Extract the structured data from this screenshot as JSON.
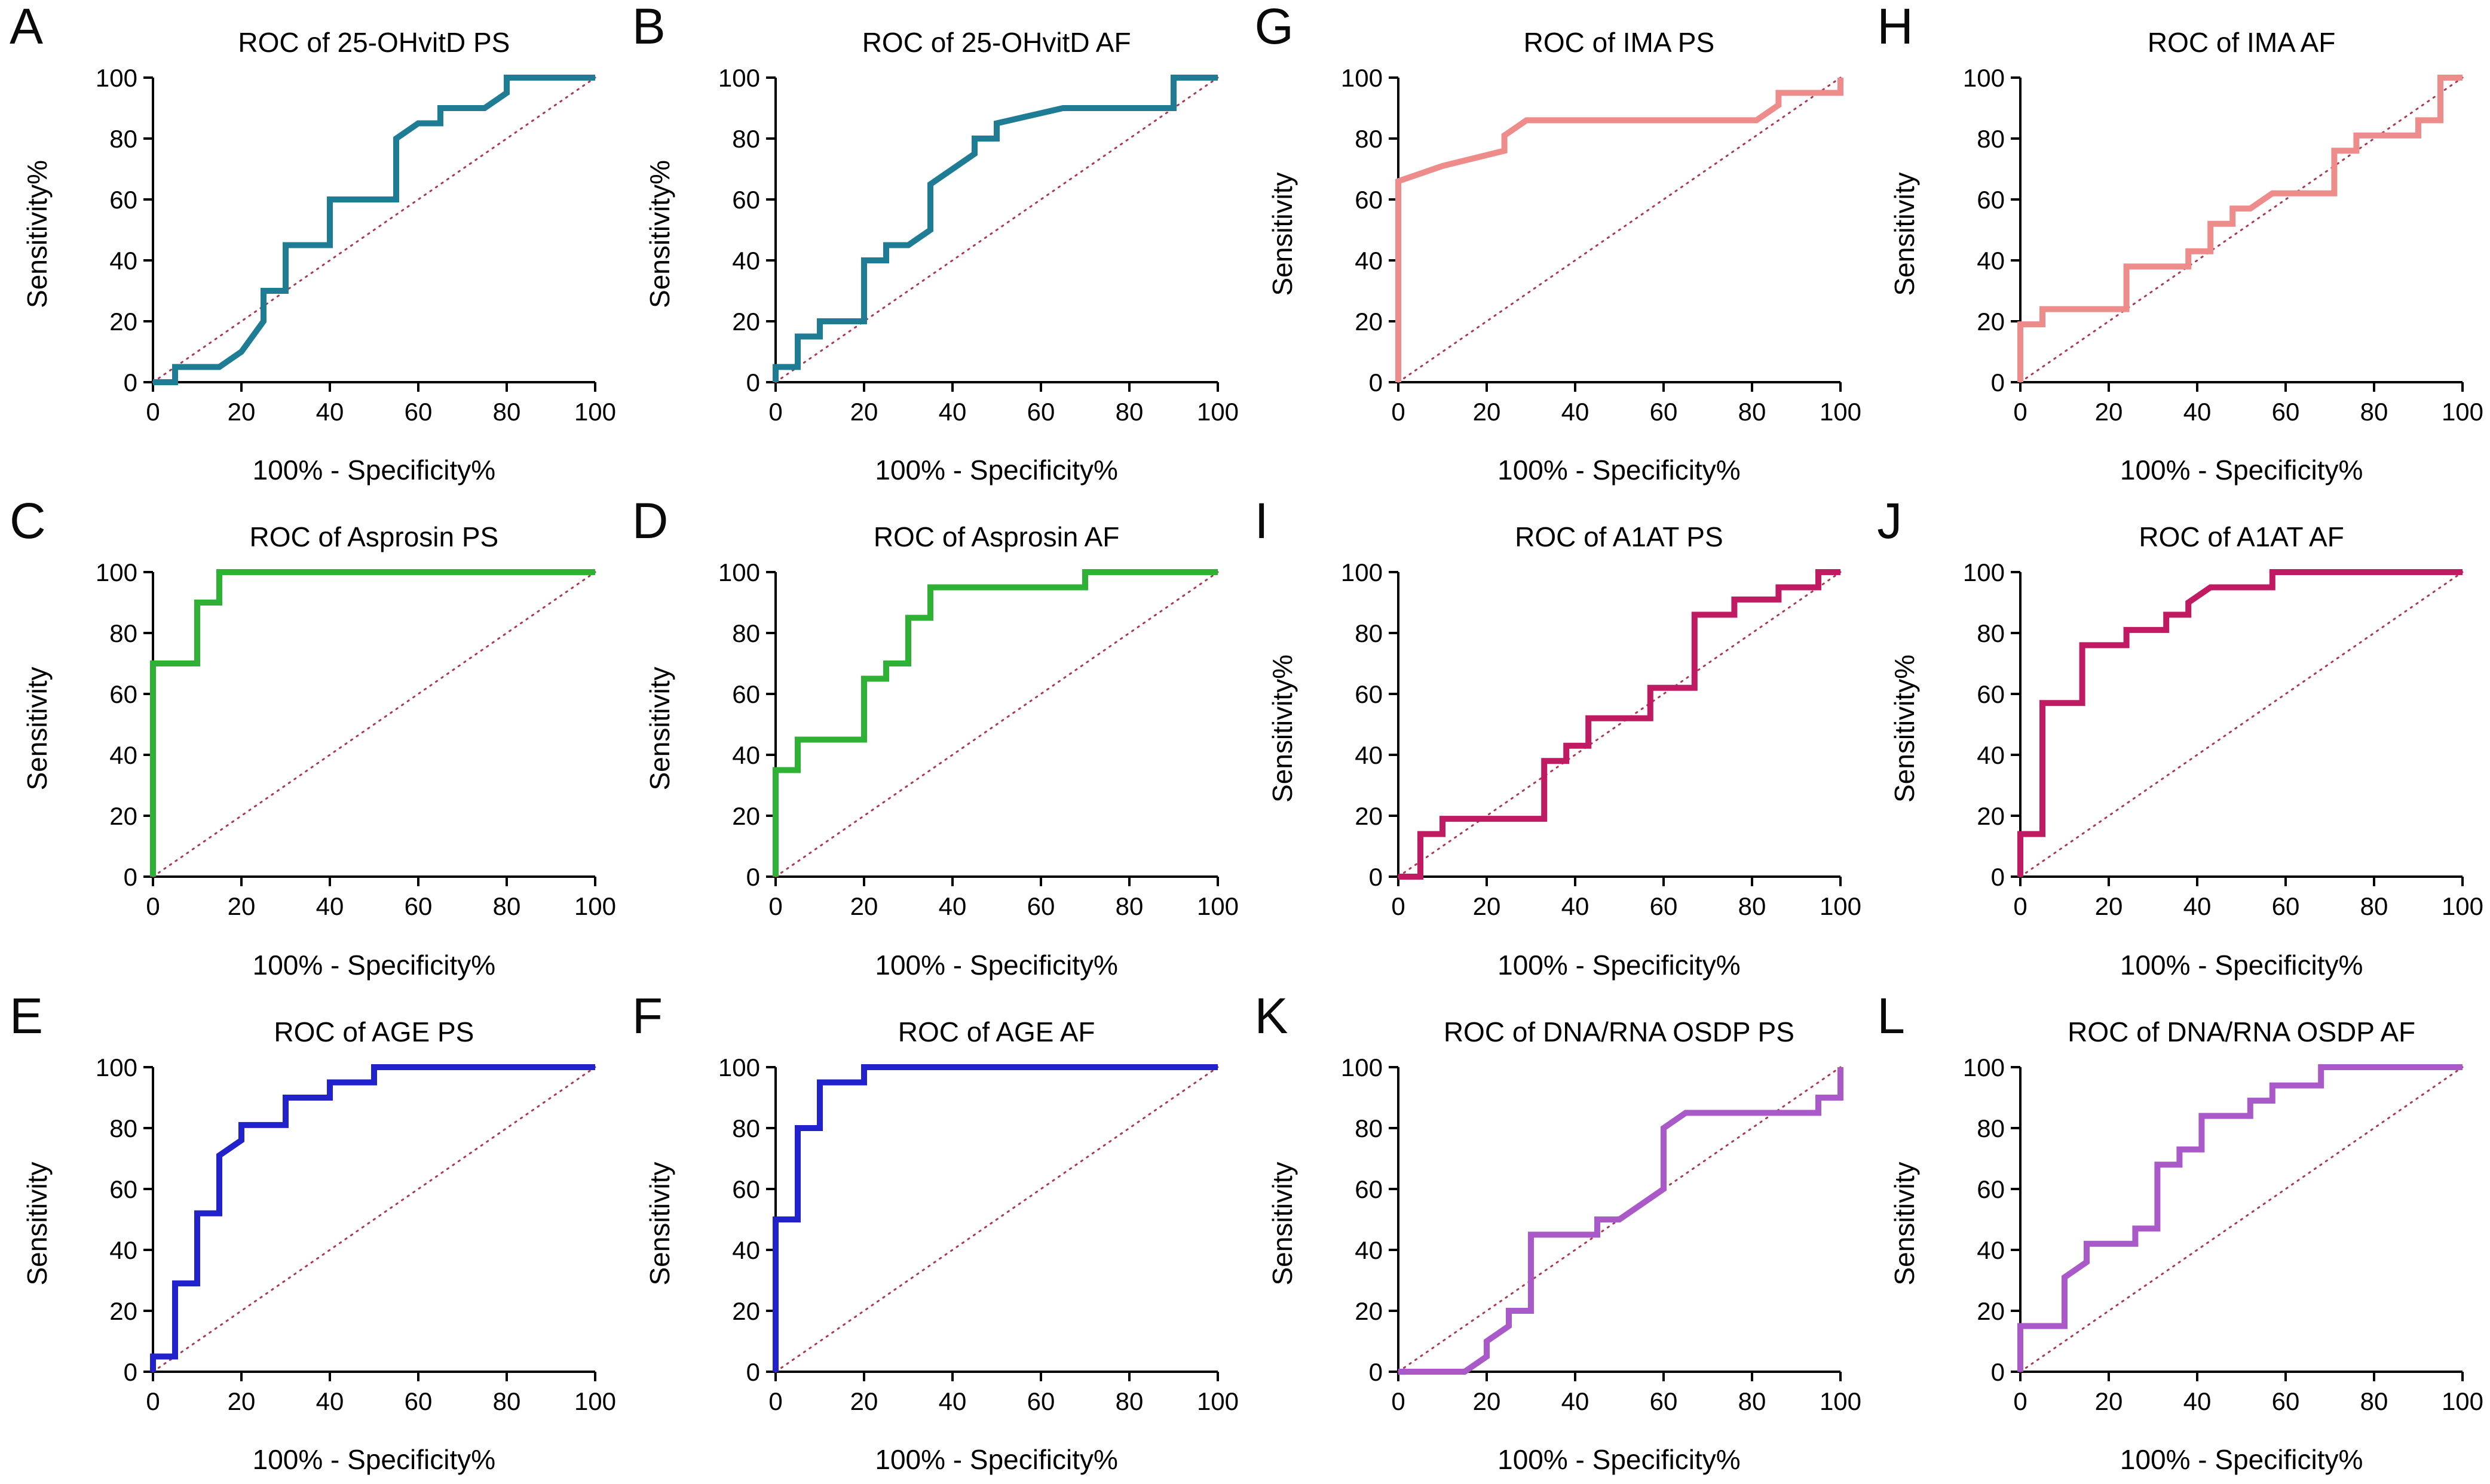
{
  "figure": {
    "background": "#ffffff",
    "axis_color": "#000000",
    "diagonal_color": "#a83a50",
    "ticks": [
      0,
      20,
      40,
      60,
      80,
      100
    ],
    "xlim": [
      0,
      100
    ],
    "ylim": [
      0,
      100
    ],
    "xlabel": "100% - Specificity%"
  },
  "chart_data": [
    {
      "panel": "A",
      "type": "line",
      "title": "ROC of 25-OHvitD PS",
      "ylabel": "Sensitivity%",
      "xlabel": "100% - Specificity%",
      "color": "#1e7d95",
      "diagonal": true,
      "legend": "none",
      "grid": false,
      "points": [
        [
          0,
          0
        ],
        [
          5,
          0
        ],
        [
          5,
          5
        ],
        [
          15,
          5
        ],
        [
          20,
          10
        ],
        [
          25,
          20
        ],
        [
          25,
          30
        ],
        [
          30,
          30
        ],
        [
          30,
          45
        ],
        [
          40,
          45
        ],
        [
          40,
          60
        ],
        [
          55,
          60
        ],
        [
          55,
          80
        ],
        [
          60,
          85
        ],
        [
          65,
          85
        ],
        [
          65,
          90
        ],
        [
          75,
          90
        ],
        [
          80,
          95
        ],
        [
          80,
          100
        ],
        [
          100,
          100
        ]
      ]
    },
    {
      "panel": "B",
      "type": "line",
      "title": "ROC of 25-OHvitD AF",
      "ylabel": "Sensitivity%",
      "xlabel": "100% - Specificity%",
      "color": "#1e7d95",
      "diagonal": true,
      "legend": "none",
      "grid": false,
      "points": [
        [
          0,
          0
        ],
        [
          0,
          5
        ],
        [
          5,
          5
        ],
        [
          5,
          15
        ],
        [
          10,
          15
        ],
        [
          10,
          20
        ],
        [
          20,
          20
        ],
        [
          20,
          40
        ],
        [
          25,
          40
        ],
        [
          25,
          45
        ],
        [
          30,
          45
        ],
        [
          35,
          50
        ],
        [
          35,
          65
        ],
        [
          45,
          75
        ],
        [
          45,
          80
        ],
        [
          50,
          80
        ],
        [
          50,
          85
        ],
        [
          65,
          90
        ],
        [
          90,
          90
        ],
        [
          90,
          100
        ],
        [
          100,
          100
        ]
      ]
    },
    {
      "panel": "G",
      "type": "line",
      "title": "ROC of IMA PS",
      "ylabel": "Sensitivity",
      "xlabel": "100% - Specificity%",
      "color": "#ee8c8c",
      "diagonal": true,
      "legend": "none",
      "grid": false,
      "points": [
        [
          0,
          0
        ],
        [
          0,
          66
        ],
        [
          10,
          71
        ],
        [
          24,
          76
        ],
        [
          24,
          81
        ],
        [
          29,
          86
        ],
        [
          81,
          86
        ],
        [
          86,
          91
        ],
        [
          86,
          95
        ],
        [
          100,
          95
        ],
        [
          100,
          100
        ]
      ]
    },
    {
      "panel": "H",
      "type": "line",
      "title": "ROC of IMA AF",
      "ylabel": "Sensitivity",
      "xlabel": "100% - Specificity%",
      "color": "#ee8c8c",
      "diagonal": true,
      "legend": "none",
      "grid": false,
      "points": [
        [
          0,
          0
        ],
        [
          0,
          19
        ],
        [
          5,
          19
        ],
        [
          5,
          24
        ],
        [
          24,
          24
        ],
        [
          24,
          38
        ],
        [
          38,
          38
        ],
        [
          38,
          43
        ],
        [
          43,
          43
        ],
        [
          43,
          52
        ],
        [
          48,
          52
        ],
        [
          48,
          57
        ],
        [
          52,
          57
        ],
        [
          57,
          62
        ],
        [
          71,
          62
        ],
        [
          71,
          76
        ],
        [
          76,
          76
        ],
        [
          76,
          81
        ],
        [
          90,
          81
        ],
        [
          90,
          86
        ],
        [
          95,
          86
        ],
        [
          95,
          100
        ],
        [
          100,
          100
        ]
      ]
    },
    {
      "panel": "C",
      "type": "line",
      "title": "ROC of Asprosin PS",
      "ylabel": "Sensitivity",
      "xlabel": "100% - Specificity%",
      "color": "#2eb135",
      "diagonal": true,
      "legend": "none",
      "grid": false,
      "points": [
        [
          0,
          0
        ],
        [
          0,
          70
        ],
        [
          10,
          70
        ],
        [
          10,
          90
        ],
        [
          15,
          90
        ],
        [
          15,
          100
        ],
        [
          100,
          100
        ]
      ]
    },
    {
      "panel": "D",
      "type": "line",
      "title": "ROC of Asprosin AF",
      "ylabel": "Sensitivity",
      "xlabel": "100% - Specificity%",
      "color": "#2eb135",
      "diagonal": true,
      "legend": "none",
      "grid": false,
      "points": [
        [
          0,
          0
        ],
        [
          0,
          35
        ],
        [
          5,
          35
        ],
        [
          5,
          45
        ],
        [
          20,
          45
        ],
        [
          20,
          65
        ],
        [
          25,
          65
        ],
        [
          25,
          70
        ],
        [
          30,
          70
        ],
        [
          30,
          85
        ],
        [
          35,
          85
        ],
        [
          35,
          95
        ],
        [
          70,
          95
        ],
        [
          70,
          100
        ],
        [
          100,
          100
        ]
      ]
    },
    {
      "panel": "I",
      "type": "line",
      "title": "ROC of A1AT PS",
      "ylabel": "Sensitivity%",
      "xlabel": "100% - Specificity%",
      "color": "#c01a62",
      "diagonal": true,
      "legend": "none",
      "grid": false,
      "points": [
        [
          0,
          0
        ],
        [
          5,
          0
        ],
        [
          5,
          14
        ],
        [
          10,
          14
        ],
        [
          10,
          19
        ],
        [
          33,
          19
        ],
        [
          33,
          38
        ],
        [
          38,
          38
        ],
        [
          38,
          43
        ],
        [
          43,
          43
        ],
        [
          43,
          52
        ],
        [
          57,
          52
        ],
        [
          57,
          62
        ],
        [
          67,
          62
        ],
        [
          67,
          86
        ],
        [
          76,
          86
        ],
        [
          76,
          91
        ],
        [
          86,
          91
        ],
        [
          86,
          95
        ],
        [
          95,
          95
        ],
        [
          95,
          100
        ],
        [
          100,
          100
        ]
      ]
    },
    {
      "panel": "J",
      "type": "line",
      "title": "ROC of A1AT AF",
      "ylabel": "Sensitivity%",
      "xlabel": "100% - Specificity%",
      "color": "#c01a62",
      "diagonal": true,
      "legend": "none",
      "grid": false,
      "points": [
        [
          0,
          0
        ],
        [
          0,
          14
        ],
        [
          5,
          14
        ],
        [
          5,
          57
        ],
        [
          14,
          57
        ],
        [
          14,
          76
        ],
        [
          24,
          76
        ],
        [
          24,
          81
        ],
        [
          33,
          81
        ],
        [
          33,
          86
        ],
        [
          38,
          86
        ],
        [
          38,
          90
        ],
        [
          43,
          95
        ],
        [
          57,
          95
        ],
        [
          57,
          100
        ],
        [
          100,
          100
        ]
      ]
    },
    {
      "panel": "E",
      "type": "line",
      "title": "ROC of AGE PS",
      "ylabel": "Sensitivity",
      "xlabel": "100% - Specificity%",
      "color": "#2222cc",
      "diagonal": true,
      "legend": "none",
      "grid": false,
      "points": [
        [
          0,
          0
        ],
        [
          0,
          5
        ],
        [
          5,
          5
        ],
        [
          5,
          29
        ],
        [
          10,
          29
        ],
        [
          10,
          52
        ],
        [
          15,
          52
        ],
        [
          15,
          71
        ],
        [
          20,
          76
        ],
        [
          20,
          81
        ],
        [
          30,
          81
        ],
        [
          30,
          90
        ],
        [
          40,
          90
        ],
        [
          40,
          95
        ],
        [
          50,
          95
        ],
        [
          50,
          100
        ],
        [
          100,
          100
        ]
      ]
    },
    {
      "panel": "F",
      "type": "line",
      "title": "ROC of AGE AF",
      "ylabel": "Sensitivity",
      "xlabel": "100% - Specificity%",
      "color": "#2222cc",
      "diagonal": true,
      "legend": "none",
      "grid": false,
      "points": [
        [
          0,
          0
        ],
        [
          0,
          50
        ],
        [
          5,
          50
        ],
        [
          5,
          80
        ],
        [
          10,
          80
        ],
        [
          10,
          95
        ],
        [
          20,
          95
        ],
        [
          20,
          100
        ],
        [
          100,
          100
        ]
      ]
    },
    {
      "panel": "K",
      "type": "line",
      "title": "ROC of DNA/RNA OSDP PS",
      "ylabel": "Sensitivity",
      "xlabel": "100% - Specificity%",
      "color": "#aa59c9",
      "diagonal": true,
      "legend": "none",
      "grid": false,
      "points": [
        [
          0,
          0
        ],
        [
          15,
          0
        ],
        [
          20,
          5
        ],
        [
          20,
          10
        ],
        [
          25,
          15
        ],
        [
          25,
          20
        ],
        [
          30,
          20
        ],
        [
          30,
          45
        ],
        [
          45,
          45
        ],
        [
          45,
          50
        ],
        [
          50,
          50
        ],
        [
          60,
          60
        ],
        [
          60,
          80
        ],
        [
          65,
          85
        ],
        [
          95,
          85
        ],
        [
          95,
          90
        ],
        [
          100,
          90
        ],
        [
          100,
          100
        ]
      ]
    },
    {
      "panel": "L",
      "type": "line",
      "title": "ROC of DNA/RNA OSDP AF",
      "ylabel": "Sensitivity",
      "xlabel": "100% - Specificity%",
      "color": "#aa59c9",
      "diagonal": true,
      "legend": "none",
      "grid": false,
      "points": [
        [
          0,
          0
        ],
        [
          0,
          15
        ],
        [
          10,
          15
        ],
        [
          10,
          31
        ],
        [
          15,
          36
        ],
        [
          15,
          42
        ],
        [
          26,
          42
        ],
        [
          26,
          47
        ],
        [
          31,
          47
        ],
        [
          31,
          68
        ],
        [
          36,
          68
        ],
        [
          36,
          73
        ],
        [
          41,
          73
        ],
        [
          41,
          84
        ],
        [
          52,
          84
        ],
        [
          52,
          89
        ],
        [
          57,
          89
        ],
        [
          57,
          94
        ],
        [
          68,
          94
        ],
        [
          68,
          100
        ],
        [
          100,
          100
        ]
      ]
    }
  ]
}
